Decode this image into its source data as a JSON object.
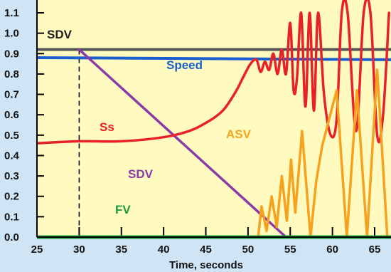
{
  "chart_data": {
    "type": "line",
    "xlabel": "Time, seconds",
    "ylabel": "",
    "xlim": [
      25,
      67
    ],
    "ylim": [
      0,
      1.1
    ],
    "x_ticks": [
      25,
      30,
      35,
      40,
      45,
      50,
      55,
      60,
      65
    ],
    "y_ticks": [
      "0.0",
      "0.1",
      "0.2",
      "0.3",
      "0.4",
      "0.5",
      "0.6",
      "0.7",
      "0.8",
      "0.9",
      "1.0",
      "1.1"
    ],
    "grid": false,
    "colors": {
      "plot_bg": "#fffbc0",
      "page_bg": "#cfe4f4",
      "SDV_level": "#555555",
      "Speed": "#1a5fd0",
      "SDV": "#8b3aa8",
      "Ss": "#e8202a",
      "ASV": "#f6a21e",
      "FV": "#1f9a3a"
    },
    "annotations": [
      {
        "text": "SDV",
        "series": "SDV_level"
      },
      {
        "text": "Speed",
        "series": "Speed"
      },
      {
        "text": "Ss",
        "series": "Ss"
      },
      {
        "text": "ASV",
        "series": "ASV"
      },
      {
        "text": "SDV",
        "series": "SDV"
      },
      {
        "text": "FV",
        "series": "FV"
      }
    ],
    "series": [
      {
        "key": "SDV_level",
        "x": [
          25,
          67
        ],
        "y": [
          0.92,
          0.92
        ]
      },
      {
        "key": "Speed",
        "x": [
          25,
          67
        ],
        "y": [
          0.88,
          0.87
        ]
      },
      {
        "key": "SDV",
        "x": [
          30,
          54.5,
          67
        ],
        "y": [
          0.92,
          0.0,
          0.0
        ]
      },
      {
        "key": "FV",
        "x": [
          25,
          67
        ],
        "y": [
          0.0,
          0.0
        ]
      },
      {
        "key": "Ss",
        "x": [
          25,
          30,
          35,
          40,
          43,
          45,
          47,
          48.5,
          49.5,
          50.3,
          51.0,
          51.5,
          52.0,
          52.5,
          53.0,
          53.5,
          54.0,
          54.5,
          55.0,
          55.4,
          55.8,
          56.3,
          56.8,
          57.3,
          57.8,
          58.3,
          59.0,
          59.8,
          60.5,
          61.1,
          61.8,
          62.8,
          63.7,
          64.5,
          65.3,
          66.0,
          66.7
        ],
        "y": [
          0.46,
          0.47,
          0.47,
          0.49,
          0.52,
          0.56,
          0.62,
          0.71,
          0.79,
          0.85,
          0.87,
          0.81,
          0.86,
          0.82,
          0.9,
          0.8,
          0.92,
          0.8,
          1.05,
          0.72,
          0.78,
          1.1,
          0.64,
          1.1,
          0.62,
          1.1,
          0.7,
          0.5,
          0.58,
          1.1,
          1.1,
          0.52,
          1.1,
          1.1,
          0.5,
          0.6,
          1.1
        ]
      },
      {
        "key": "ASV",
        "x": [
          51.2,
          51.6,
          52.2,
          52.8,
          53.4,
          54.0,
          54.6,
          55.1,
          55.6,
          56.4,
          57.4,
          58.1,
          58.8,
          60.5,
          61.7,
          62.9,
          64.1,
          65.3,
          66.5
        ],
        "y": [
          0.0,
          0.15,
          0.03,
          0.2,
          0.05,
          0.3,
          0.08,
          0.38,
          0.12,
          0.52,
          0.0,
          0.28,
          0.45,
          0.72,
          0.0,
          0.72,
          0.0,
          0.82,
          0.0
        ]
      }
    ]
  }
}
